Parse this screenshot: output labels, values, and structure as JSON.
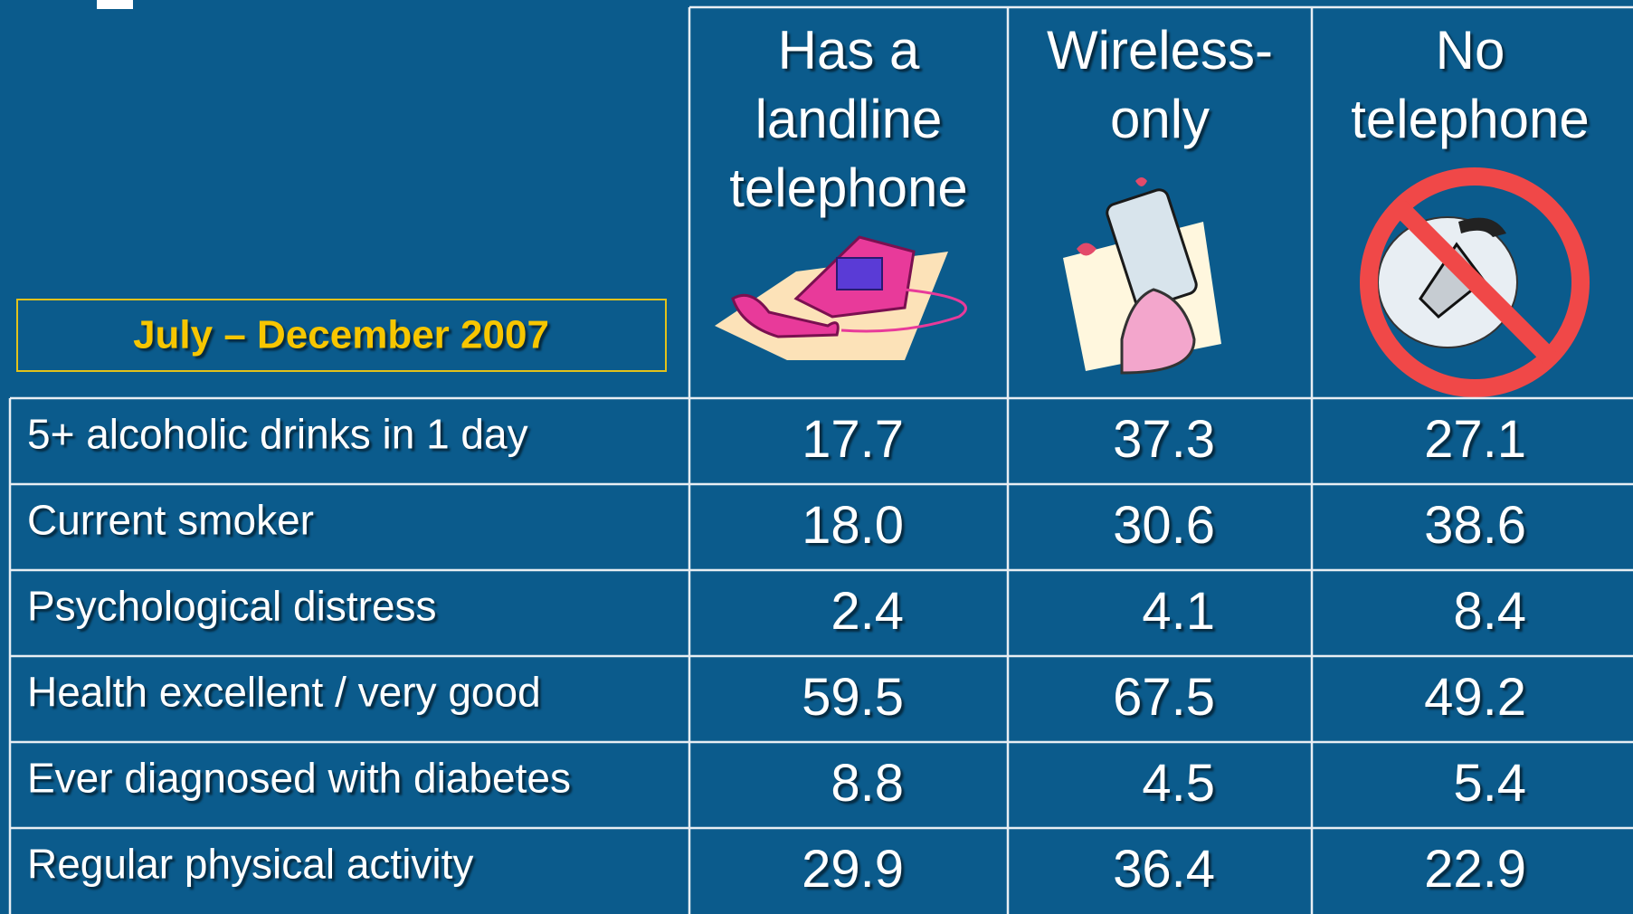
{
  "header": {
    "period": "July – December 2007",
    "columns": [
      {
        "lines": [
          "Has a",
          "landline",
          "telephone"
        ]
      },
      {
        "lines": [
          "Wireless-",
          "only"
        ]
      },
      {
        "lines": [
          "No",
          "telephone"
        ]
      }
    ]
  },
  "table": {
    "rows": [
      {
        "label": "5+ alcoholic drinks in 1 day",
        "values": [
          "17.7",
          "37.3",
          "27.1"
        ]
      },
      {
        "label": "Current smoker",
        "values": [
          "18.0",
          "30.6",
          "38.6"
        ]
      },
      {
        "label": "Psychological distress",
        "values": [
          "2.4",
          "4.1",
          "8.4"
        ]
      },
      {
        "label": "Health excellent / very good",
        "values": [
          "59.5",
          "67.5",
          "49.2"
        ]
      },
      {
        "label": "Ever diagnosed with diabetes",
        "values": [
          "8.8",
          "4.5",
          "5.4"
        ]
      },
      {
        "label": "Regular physical activity",
        "values": [
          "29.9",
          "36.4",
          "22.9"
        ]
      }
    ]
  }
}
